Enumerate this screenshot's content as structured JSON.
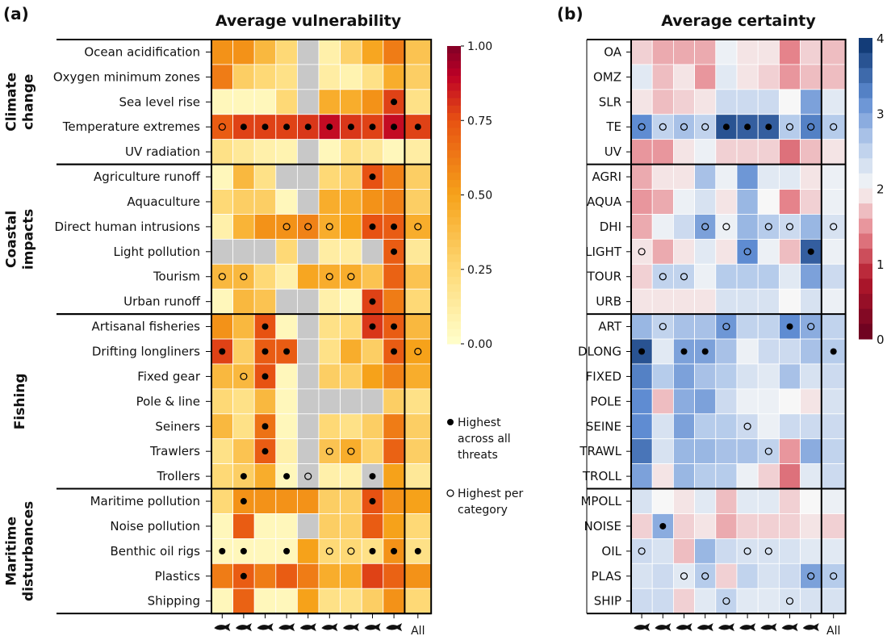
{
  "chart_data": [
    {
      "type": "heatmap",
      "panel_label": "(a)",
      "title": "Average vulnerability",
      "columns": [
        "fish",
        "shark",
        "shark2",
        "bird",
        "bear",
        "penguin",
        "seal",
        "walrus",
        "whale",
        "All"
      ],
      "column_labels": [
        "",
        "",
        "",
        "",
        "",
        "",
        "",
        "",
        "",
        "All"
      ],
      "groups": [
        {
          "name": "Climate change",
          "label_lines": [
            "Climate",
            "change"
          ],
          "rows": [
            "Ocean acidification",
            "Oxygen minimum zones",
            "Sea level rise",
            "Temperature extremes",
            "UV radiation"
          ]
        },
        {
          "name": "Coastal impacts",
          "label_lines": [
            "Coastal",
            "impacts"
          ],
          "rows": [
            "Agriculture runoff",
            "Aquaculture",
            "Direct human intrusions",
            "Light pollution",
            "Tourism",
            "Urban runoff"
          ]
        },
        {
          "name": "Fishing",
          "label_lines": [
            "Fishing"
          ],
          "rows": [
            "Artisanal fisheries",
            "Drifting longliners",
            "Fixed gear",
            "Pole & line",
            "Seiners",
            "Trawlers",
            "Trollers"
          ]
        },
        {
          "name": "Maritime disturbances",
          "label_lines": [
            "Maritime",
            "disturbances"
          ],
          "rows": [
            "Maritime pollution",
            "Noise pollution",
            "Benthic oil rigs",
            "Plastics",
            "Shipping"
          ]
        }
      ],
      "values": [
        [
          0.55,
          0.55,
          0.4,
          0.25,
          null,
          0.1,
          0.28,
          0.48,
          0.62,
          0.35
        ],
        [
          0.62,
          0.3,
          0.25,
          0.2,
          null,
          0.12,
          0.08,
          0.2,
          0.45,
          0.3
        ],
        [
          0.05,
          0.05,
          0.05,
          0.25,
          null,
          0.45,
          0.45,
          0.55,
          0.78,
          0.2
        ],
        [
          0.72,
          0.78,
          0.78,
          0.78,
          0.8,
          0.88,
          0.8,
          0.78,
          0.88,
          0.78
        ],
        [
          0.2,
          0.15,
          0.1,
          0.08,
          null,
          0.05,
          0.2,
          0.15,
          0.05,
          0.12
        ],
        [
          0.05,
          0.4,
          0.2,
          null,
          null,
          0.25,
          0.3,
          0.75,
          0.6,
          0.3
        ],
        [
          0.25,
          0.3,
          0.3,
          0.05,
          null,
          0.45,
          0.45,
          0.55,
          0.6,
          0.3
        ],
        [
          0.1,
          0.42,
          0.55,
          0.55,
          0.6,
          0.45,
          0.5,
          0.75,
          0.72,
          0.45
        ],
        [
          null,
          null,
          null,
          0.25,
          null,
          0.12,
          0.12,
          null,
          0.72,
          0.15
        ],
        [
          0.4,
          0.4,
          0.25,
          0.1,
          0.48,
          0.45,
          0.45,
          0.35,
          0.7,
          0.35
        ],
        [
          0.05,
          0.4,
          0.35,
          null,
          null,
          0.1,
          0.05,
          0.78,
          0.62,
          0.25
        ],
        [
          0.55,
          0.4,
          0.75,
          0.05,
          null,
          0.2,
          0.25,
          0.8,
          0.72,
          0.4
        ],
        [
          0.78,
          0.3,
          0.72,
          0.72,
          null,
          0.2,
          0.45,
          0.3,
          0.72,
          0.5
        ],
        [
          0.4,
          0.4,
          0.75,
          0.05,
          null,
          0.3,
          0.3,
          0.5,
          0.6,
          0.45
        ],
        [
          0.25,
          0.2,
          0.4,
          0.05,
          null,
          null,
          null,
          null,
          0.3,
          0.2
        ],
        [
          0.4,
          0.2,
          0.65,
          0.05,
          null,
          0.25,
          0.2,
          0.3,
          0.62,
          0.3
        ],
        [
          0.2,
          0.35,
          0.72,
          0.1,
          null,
          0.35,
          0.45,
          0.28,
          0.7,
          0.3
        ],
        [
          0.25,
          0.3,
          0.45,
          0.05,
          null,
          0.1,
          0.1,
          null,
          0.5,
          0.15
        ],
        [
          0.25,
          0.55,
          0.55,
          0.55,
          0.55,
          0.3,
          0.3,
          0.75,
          0.55,
          0.5
        ],
        [
          0.05,
          0.72,
          0.05,
          0.05,
          null,
          0.3,
          0.3,
          0.72,
          0.5,
          0.25
        ],
        [
          0.05,
          0.05,
          0.05,
          0.05,
          0.5,
          0.25,
          0.25,
          0.2,
          0.55,
          0.2
        ],
        [
          0.62,
          0.72,
          0.62,
          0.72,
          0.62,
          0.45,
          0.45,
          0.78,
          0.7,
          0.55
        ],
        [
          0.05,
          0.7,
          0.05,
          0.05,
          0.5,
          0.2,
          0.2,
          0.3,
          0.55,
          0.25
        ]
      ],
      "markers_filled": [
        [
          3,
          1
        ],
        [
          3,
          2
        ],
        [
          3,
          3
        ],
        [
          3,
          4
        ],
        [
          3,
          5
        ],
        [
          3,
          6
        ],
        [
          3,
          7
        ],
        [
          3,
          8
        ],
        [
          3,
          9
        ],
        [
          2,
          8
        ],
        [
          5,
          7
        ],
        [
          7,
          7
        ],
        [
          7,
          8
        ],
        [
          8,
          8
        ],
        [
          10,
          7
        ],
        [
          11,
          2
        ],
        [
          11,
          7
        ],
        [
          11,
          8
        ],
        [
          12,
          0
        ],
        [
          12,
          2
        ],
        [
          12,
          3
        ],
        [
          12,
          8
        ],
        [
          13,
          2
        ],
        [
          15,
          2
        ],
        [
          16,
          2
        ],
        [
          17,
          1
        ],
        [
          17,
          3
        ],
        [
          17,
          7
        ],
        [
          18,
          1
        ],
        [
          18,
          7
        ],
        [
          20,
          0
        ],
        [
          20,
          1
        ],
        [
          20,
          3
        ],
        [
          20,
          7
        ],
        [
          20,
          8
        ],
        [
          20,
          9
        ],
        [
          21,
          1
        ]
      ],
      "markers_open": [
        [
          3,
          0
        ],
        [
          7,
          3
        ],
        [
          7,
          4
        ],
        [
          7,
          5
        ],
        [
          7,
          9
        ],
        [
          9,
          0
        ],
        [
          9,
          1
        ],
        [
          9,
          5
        ],
        [
          9,
          6
        ],
        [
          12,
          9
        ],
        [
          13,
          1
        ],
        [
          16,
          5
        ],
        [
          16,
          6
        ],
        [
          17,
          4
        ],
        [
          20,
          5
        ],
        [
          20,
          6
        ]
      ],
      "colorbar": {
        "min": 0,
        "max": 1,
        "ticks": [
          "0.00",
          "0.25",
          "0.50",
          "0.75",
          "1.00"
        ]
      },
      "legend": [
        "Highest across all threats",
        "Highest per category"
      ]
    },
    {
      "type": "heatmap",
      "panel_label": "(b)",
      "title": "Average certainty",
      "columns": [
        "fish",
        "shark",
        "shark2",
        "bird",
        "bear",
        "penguin",
        "seal",
        "walrus",
        "whale",
        "All"
      ],
      "column_labels": [
        "",
        "",
        "",
        "",
        "",
        "",
        "",
        "",
        "",
        "All"
      ],
      "rows": [
        "OA",
        "OMZ",
        "SLR",
        "TE",
        "UV",
        "AGRI",
        "AQUA",
        "DHI",
        "LIGHT",
        "TOUR",
        "URB",
        "ART",
        "DLONG",
        "FIXED",
        "POLE",
        "SEINE",
        "TRAWL",
        "TROLL",
        "MPOLL",
        "NOISE",
        "OIL",
        "PLAS",
        "SHIP"
      ],
      "values": [
        [
          1.8,
          1.6,
          1.6,
          1.6,
          2.1,
          1.9,
          1.9,
          1.4,
          1.8,
          1.7
        ],
        [
          2.2,
          1.7,
          1.9,
          1.5,
          2.2,
          1.9,
          1.8,
          1.5,
          1.7,
          1.7
        ],
        [
          1.9,
          1.7,
          1.8,
          1.9,
          2.4,
          2.4,
          2.4,
          2.0,
          3.0,
          2.2
        ],
        [
          3.2,
          2.5,
          2.7,
          2.5,
          3.7,
          3.6,
          3.6,
          2.6,
          3.3,
          2.6
        ],
        [
          1.5,
          1.5,
          1.9,
          2.1,
          1.8,
          1.8,
          1.8,
          1.3,
          1.7,
          1.9
        ],
        [
          1.6,
          1.9,
          1.9,
          2.7,
          2.1,
          3.1,
          2.2,
          2.2,
          1.9,
          2.1
        ],
        [
          1.5,
          1.6,
          2.1,
          2.3,
          1.9,
          2.8,
          2.0,
          1.4,
          1.8,
          2.1
        ],
        [
          1.6,
          2.1,
          2.4,
          3.0,
          2.1,
          2.8,
          2.6,
          2.4,
          2.8,
          2.3
        ],
        [
          1.9,
          1.6,
          1.9,
          2.2,
          1.9,
          3.2,
          2.1,
          1.7,
          3.6,
          2.1
        ],
        [
          1.8,
          2.5,
          2.5,
          2.1,
          2.6,
          2.6,
          2.6,
          2.2,
          3.0,
          2.4
        ],
        [
          1.9,
          1.9,
          1.9,
          1.9,
          2.3,
          2.3,
          2.3,
          2.0,
          2.3,
          2.1
        ],
        [
          2.8,
          2.5,
          2.7,
          2.7,
          3.1,
          2.5,
          2.5,
          3.2,
          2.9,
          2.5
        ],
        [
          3.7,
          2.2,
          3.0,
          3.0,
          2.7,
          2.1,
          2.4,
          2.4,
          2.7,
          2.6
        ],
        [
          3.3,
          2.6,
          3.0,
          2.7,
          2.6,
          2.3,
          2.2,
          2.7,
          2.3,
          2.4
        ],
        [
          3.2,
          1.7,
          2.9,
          3.0,
          2.4,
          2.1,
          2.1,
          2.0,
          1.9,
          2.3
        ],
        [
          3.2,
          2.3,
          3.0,
          2.6,
          2.6,
          2.4,
          2.1,
          2.4,
          2.4,
          2.4
        ],
        [
          3.4,
          2.3,
          2.8,
          2.8,
          2.7,
          2.7,
          2.5,
          1.5,
          2.9,
          2.5
        ],
        [
          3.0,
          1.9,
          2.8,
          2.6,
          2.6,
          2.1,
          1.8,
          1.3,
          2.2,
          2.4
        ],
        [
          2.3,
          2.0,
          1.9,
          2.2,
          1.7,
          2.2,
          2.2,
          1.8,
          2.0,
          2.1
        ],
        [
          1.8,
          2.9,
          1.8,
          1.9,
          1.6,
          1.8,
          1.8,
          1.8,
          1.9,
          1.8
        ],
        [
          2.4,
          2.3,
          1.7,
          2.8,
          2.4,
          2.3,
          2.3,
          2.3,
          2.2,
          2.2
        ],
        [
          2.3,
          2.4,
          2.2,
          2.6,
          1.8,
          2.5,
          2.3,
          2.4,
          3.0,
          2.6
        ],
        [
          2.4,
          2.4,
          1.8,
          2.2,
          2.5,
          2.2,
          2.2,
          2.3,
          2.3,
          2.3
        ]
      ],
      "markers_filled": [
        [
          3,
          4
        ],
        [
          3,
          5
        ],
        [
          3,
          6
        ],
        [
          8,
          8
        ],
        [
          11,
          7
        ],
        [
          12,
          0
        ],
        [
          12,
          2
        ],
        [
          12,
          3
        ],
        [
          12,
          9
        ],
        [
          19,
          1
        ]
      ],
      "markers_open": [
        [
          3,
          0
        ],
        [
          3,
          1
        ],
        [
          3,
          2
        ],
        [
          3,
          3
        ],
        [
          3,
          7
        ],
        [
          3,
          8
        ],
        [
          3,
          9
        ],
        [
          7,
          3
        ],
        [
          7,
          4
        ],
        [
          7,
          6
        ],
        [
          7,
          7
        ],
        [
          7,
          9
        ],
        [
          8,
          0
        ],
        [
          8,
          5
        ],
        [
          9,
          1
        ],
        [
          9,
          2
        ],
        [
          11,
          1
        ],
        [
          11,
          4
        ],
        [
          11,
          8
        ],
        [
          15,
          5
        ],
        [
          16,
          6
        ],
        [
          20,
          0
        ],
        [
          20,
          5
        ],
        [
          20,
          6
        ],
        [
          21,
          2
        ],
        [
          21,
          3
        ],
        [
          21,
          8
        ],
        [
          21,
          9
        ],
        [
          22,
          4
        ],
        [
          22,
          7
        ]
      ],
      "colorbar": {
        "min": 0,
        "max": 4,
        "ticks": [
          "0",
          "1",
          "2",
          "3",
          "4"
        ]
      }
    }
  ]
}
